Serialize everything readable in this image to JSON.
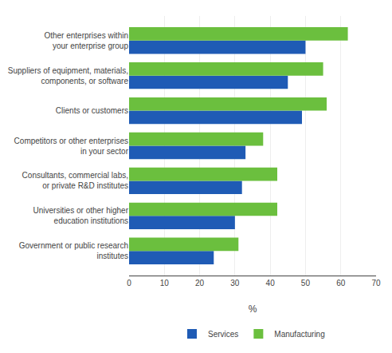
{
  "chart_data": {
    "type": "bar",
    "orientation": "horizontal",
    "categories": [
      "Government or public research\ninstitutes",
      "Universities or other higher\neducation institutions",
      "Consultants, commercial labs,\nor private R&D institutes",
      "Competitors or other enterprises\nin your sector",
      "Clients or customers",
      "Suppliers of equipment, materials,\ncomponents, or software",
      "Other enterprises within\nyour enterprise group"
    ],
    "series": [
      {
        "name": "Services",
        "color": "#1F5BB5",
        "values": [
          24,
          30,
          32,
          33,
          49,
          45,
          50
        ]
      },
      {
        "name": "Manufacturing",
        "color": "#6BBF3E",
        "values": [
          31,
          42,
          42,
          38,
          56,
          55,
          62
        ]
      }
    ],
    "xlabel": "%",
    "xlim": [
      0,
      70
    ],
    "xticks": [
      0,
      10,
      20,
      30,
      40,
      50,
      60,
      70
    ],
    "grid": true,
    "legend": "bottom"
  }
}
